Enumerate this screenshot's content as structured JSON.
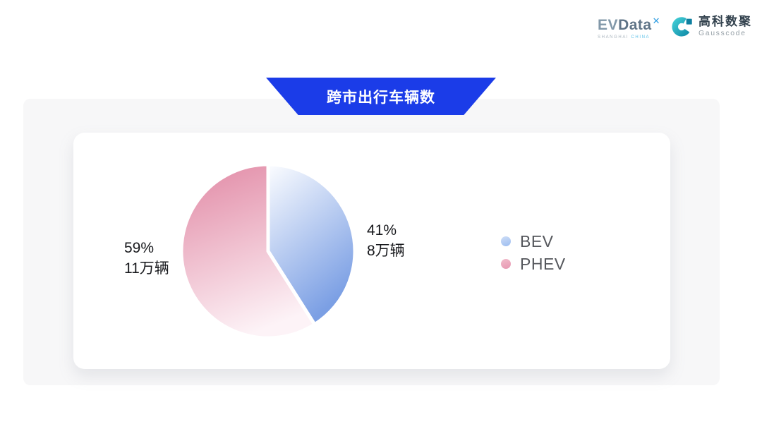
{
  "theme": {
    "accent_blue": "#1b3ce8",
    "label_text": "#17181c",
    "legend_text": "#55575c",
    "section_bg": "#f7f7f8"
  },
  "header": {
    "evdata": {
      "ev": "EV",
      "data": "Data",
      "mark": "✕",
      "sub1": "SHANGHAI",
      "sub2": "CHINA"
    },
    "gausscode": {
      "cn": "高科数聚",
      "en": "Gausscode"
    }
  },
  "banner": {
    "title": "跨市出行车辆数"
  },
  "chart_data": {
    "type": "pie",
    "title": "跨市出行车辆数",
    "unit": "万辆",
    "start_angle_deg": -90,
    "direction": "clockwise",
    "legend_position": "right",
    "legend": [
      "BEV",
      "PHEV"
    ],
    "series": [
      {
        "name": "BEV",
        "percent": 41,
        "value": 8,
        "percent_label": "41%",
        "value_label": "8万辆",
        "colors": [
          "#fcfdff",
          "#7b9fe4"
        ],
        "dot": [
          "#cfdef7",
          "#9bbcf0"
        ]
      },
      {
        "name": "PHEV",
        "percent": 59,
        "value": 11,
        "percent_label": "59%",
        "value_label": "11万辆",
        "colors": [
          "#e28ca7",
          "#fdf3f7"
        ],
        "dot": [
          "#f2bccb",
          "#e697b1"
        ]
      }
    ]
  }
}
